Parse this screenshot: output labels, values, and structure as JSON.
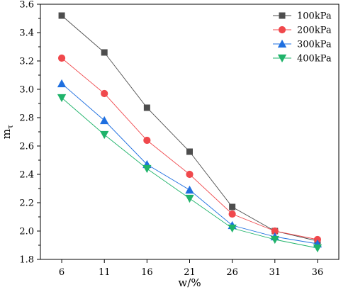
{
  "chart_data": {
    "type": "line",
    "xlabel": "w/%",
    "ylabel": "m",
    "ylabel_sub": "τ",
    "x": [
      6,
      11,
      16,
      21,
      26,
      31,
      36
    ],
    "ylim": [
      1.8,
      3.6
    ],
    "yticks": [
      1.8,
      2.0,
      2.2,
      2.4,
      2.6,
      2.8,
      3.0,
      3.2,
      3.4,
      3.6
    ],
    "grid": false,
    "legend_position": "top-right",
    "series": [
      {
        "name": "100kPa",
        "color": "#4d4d4d",
        "marker": "square",
        "values": [
          3.52,
          3.26,
          2.87,
          2.56,
          2.17,
          2.0,
          1.93
        ]
      },
      {
        "name": "200kPa",
        "color": "#f0484c",
        "marker": "circle",
        "values": [
          3.22,
          2.97,
          2.64,
          2.4,
          2.12,
          2.0,
          1.94
        ]
      },
      {
        "name": "300kPa",
        "color": "#1e6fe0",
        "marker": "triangle-up",
        "values": [
          3.04,
          2.78,
          2.47,
          2.29,
          2.04,
          1.96,
          1.91
        ]
      },
      {
        "name": "400kPa",
        "color": "#1fb36a",
        "marker": "triangle-down",
        "values": [
          2.94,
          2.68,
          2.44,
          2.23,
          2.02,
          1.94,
          1.88
        ]
      }
    ]
  }
}
